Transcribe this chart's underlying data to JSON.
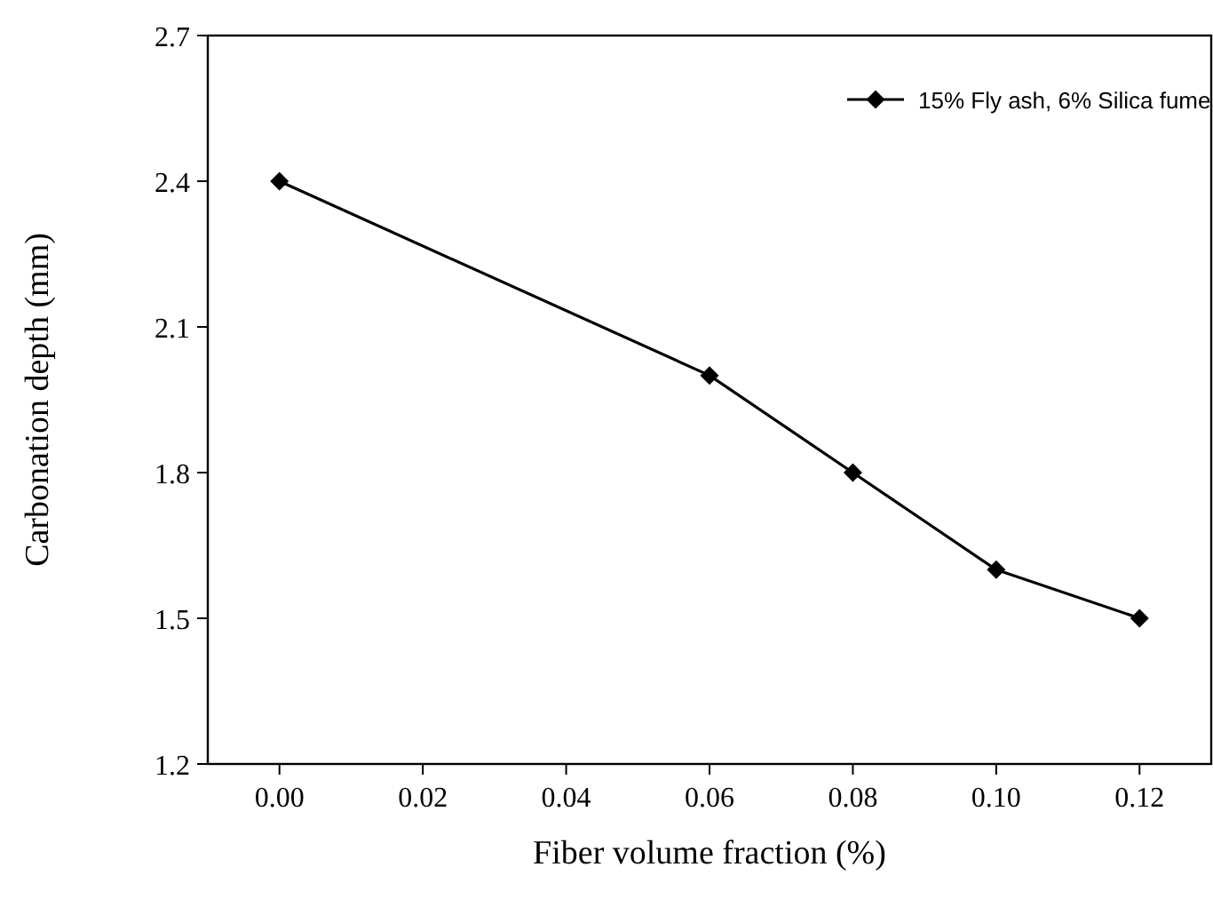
{
  "chart_data": {
    "type": "line",
    "xlabel": "Fiber volume fraction (%)",
    "ylabel": "Carbonation depth (mm)",
    "x": [
      0,
      0.06,
      0.08,
      0.1,
      0.12
    ],
    "series": [
      {
        "name": "15% Fly ash, 6% Silica fume",
        "color": "#000000",
        "values": [
          2.4,
          2.0,
          1.8,
          1.6,
          1.5
        ]
      }
    ],
    "xlim": [
      -0.01,
      0.13
    ],
    "xticks": [
      {
        "value": 0,
        "label": "0.00"
      },
      {
        "value": 0.02,
        "label": "0.02"
      },
      {
        "value": 0.04,
        "label": "0.04"
      },
      {
        "value": 0.06,
        "label": "0.06"
      },
      {
        "value": 0.08,
        "label": "0.08"
      },
      {
        "value": 0.1,
        "label": "0.10"
      },
      {
        "value": 0.12,
        "label": "0.12"
      }
    ],
    "ylim": [
      1.2,
      2.7
    ],
    "yticks": [
      1.2,
      1.5,
      1.8,
      2.1,
      2.4,
      2.7
    ],
    "legend": "top right",
    "marker": "diamond",
    "line_style": "solid",
    "grid": false
  }
}
